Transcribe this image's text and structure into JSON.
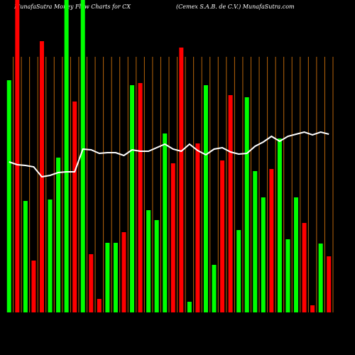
{
  "chart_data": {
    "type": "bar",
    "title": "MunafaSutra  Money Flow  Charts for CX",
    "subtitle": "(Cemex S.A.B. de    C.V.) MunafaSutra.com",
    "ylim": [
      0,
      440
    ],
    "values": [
      327,
      440,
      157,
      73,
      382,
      159,
      218,
      440,
      297,
      440,
      82,
      19,
      98,
      98,
      113,
      320,
      323,
      144,
      130,
      252,
      210,
      373,
      15,
      238,
      320,
      67,
      214,
      306,
      116,
      303,
      199,
      162,
      202,
      245,
      103,
      162,
      126,
      10,
      97,
      79
    ],
    "colors": [
      "#00ff00",
      "#ff0000",
      "#00ff00",
      "#ff0000",
      "#ff0000",
      "#00ff00",
      "#00ff00",
      "#00ff00",
      "#ff0000",
      "#00ff00",
      "#ff0000",
      "#ff0000",
      "#00ff00",
      "#00ff00",
      "#ff0000",
      "#00ff00",
      "#ff0000",
      "#00ff00",
      "#00ff00",
      "#00ff00",
      "#ff0000",
      "#ff0000",
      "#00ff00",
      "#ff0000",
      "#00ff00",
      "#00ff00",
      "#ff0000",
      "#ff0000",
      "#00ff00",
      "#00ff00",
      "#00ff00",
      "#00ff00",
      "#ff0000",
      "#00ff00",
      "#00ff00",
      "#00ff00",
      "#ff0000",
      "#ff0000",
      "#00ff00",
      "#ff0000"
    ],
    "line": {
      "color": "#ffffff",
      "values": [
        212,
        208,
        207,
        205,
        191,
        193,
        197,
        198,
        198,
        230,
        229,
        224,
        225,
        225,
        221,
        229,
        227,
        227,
        232,
        237,
        230,
        227,
        237,
        228,
        222,
        230,
        232,
        226,
        223,
        224,
        234,
        240,
        248,
        241,
        248,
        251,
        254,
        250,
        254,
        251
      ]
    }
  }
}
